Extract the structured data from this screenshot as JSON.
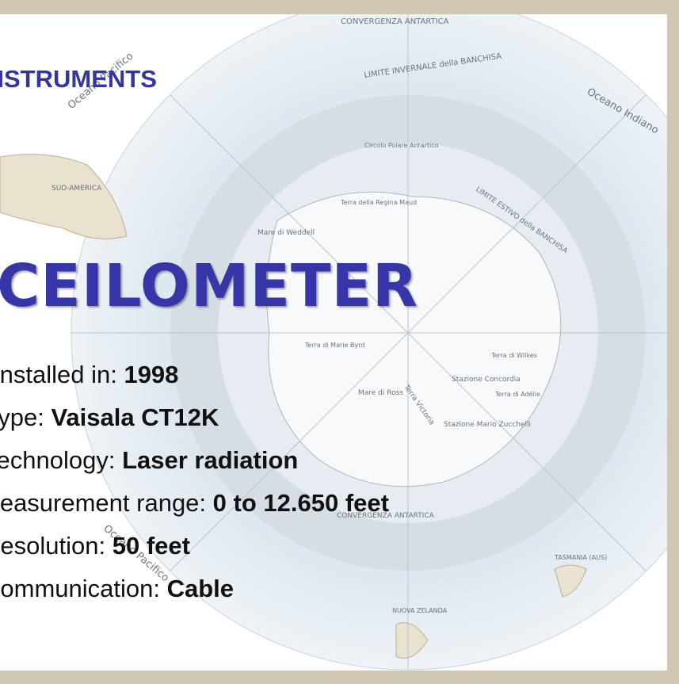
{
  "header": {
    "title": "INSTRUMENTS"
  },
  "title": "CEILOMETER",
  "specs": [
    {
      "label": "Installed in:",
      "value": "1998"
    },
    {
      "label": "Type:",
      "value": "Vaisala CT12K"
    },
    {
      "label": "Technology:",
      "value": "Laser radiation"
    },
    {
      "label": "Measurement range:",
      "value": "0 to 12.650 feet"
    },
    {
      "label": "Resolution:",
      "value": "50 feet"
    },
    {
      "label": "Communication:",
      "value": "Cable"
    }
  ],
  "map_labels": [
    "CONVERGENZA ANTARTICA",
    "LIMITE INVERNALE della BANCHISA",
    "Oceano Indiano",
    "Oceano Pacifico",
    "SUD-AMERICA",
    "Circolo Polare Antartico",
    "Terra della Regina Maud",
    "Mare di Weddell",
    "LIMITE ESTIVO della BANCHISA",
    "Terra di Marie Byrd",
    "Stazione Concordia",
    "Terra di Wilkes",
    "Terra di Adélie",
    "Terra Victoria",
    "Stazione Mario Zucchelli",
    "Mare di Ross",
    "CONVERGENZA ANTARTICA",
    "TASMANIA (AUS)",
    "NUOVA ZELANDA",
    "Oceano Pacifico"
  ]
}
